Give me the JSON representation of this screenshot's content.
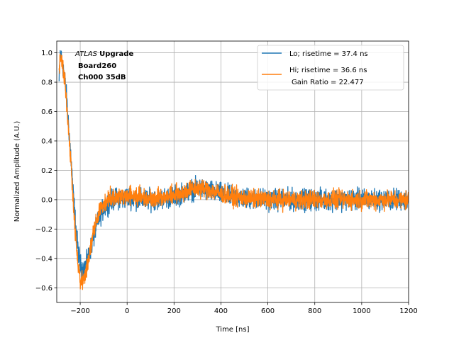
{
  "chart_data": {
    "type": "line",
    "xlabel": "Time [ns]",
    "ylabel": "Normalized Amplitude (A.U.)",
    "xlim": [
      -300,
      1200
    ],
    "ylim": [
      -0.7,
      1.08
    ],
    "x_ticks": [
      -200,
      0,
      200,
      400,
      600,
      800,
      1000,
      1200
    ],
    "y_ticks": [
      -0.6,
      -0.4,
      -0.2,
      0.0,
      0.2,
      0.4,
      0.6,
      0.8,
      1.0
    ],
    "grid": true,
    "legend_position": "top-right",
    "annotation": {
      "atlas": "ATLAS",
      "upgrade": "Upgrade",
      "board": "Board260",
      "channel": "Ch000 35dB"
    },
    "legend": {
      "lo": "Lo; risetime = 37.4 ns",
      "hi_line1": "Hi; risetime = 36.6 ns",
      "hi_line2": "Gain Ratio = 22.477"
    },
    "series": [
      {
        "name": "Lo",
        "color": "#1f77b4",
        "noise": 0.05,
        "x": [
          -290,
          -285,
          -280,
          -270,
          -260,
          -250,
          -240,
          -230,
          -220,
          -210,
          -200,
          -190,
          -180,
          -170,
          -160,
          -150,
          -140,
          -130,
          -120,
          -110,
          -100,
          -80,
          -60,
          -40,
          -20,
          0,
          50,
          100,
          150,
          200,
          250,
          300,
          350,
          400,
          450,
          500,
          600,
          700,
          800,
          900,
          1000,
          1100,
          1200
        ],
        "y": [
          0.8,
          1.0,
          0.96,
          0.88,
          0.73,
          0.52,
          0.3,
          0.05,
          -0.16,
          -0.33,
          -0.44,
          -0.48,
          -0.46,
          -0.42,
          -0.36,
          -0.3,
          -0.24,
          -0.18,
          -0.13,
          -0.09,
          -0.06,
          -0.02,
          0.0,
          0.01,
          0.0,
          0.02,
          0.0,
          0.0,
          0.01,
          0.02,
          0.05,
          0.08,
          0.06,
          0.04,
          0.02,
          0.01,
          0.0,
          0.0,
          0.0,
          0.0,
          0.0,
          0.0,
          0.0
        ]
      },
      {
        "name": "Hi",
        "color": "#ff7f0e",
        "noise": 0.045,
        "x": [
          -290,
          -285,
          -280,
          -270,
          -260,
          -250,
          -240,
          -230,
          -220,
          -210,
          -200,
          -190,
          -180,
          -170,
          -160,
          -150,
          -140,
          -130,
          -120,
          -110,
          -100,
          -80,
          -60,
          -40,
          -20,
          0,
          50,
          100,
          150,
          200,
          250,
          300,
          350,
          400,
          450,
          500,
          600,
          700,
          800,
          900,
          1000,
          1100,
          1200
        ],
        "y": [
          0.85,
          1.0,
          0.95,
          0.86,
          0.7,
          0.49,
          0.26,
          0.0,
          -0.24,
          -0.44,
          -0.55,
          -0.57,
          -0.52,
          -0.45,
          -0.36,
          -0.28,
          -0.2,
          -0.14,
          -0.09,
          -0.05,
          -0.03,
          0.0,
          0.02,
          0.03,
          0.02,
          0.03,
          0.02,
          0.01,
          0.02,
          0.03,
          0.06,
          0.08,
          0.07,
          0.04,
          0.02,
          0.01,
          0.0,
          0.0,
          0.0,
          0.0,
          0.0,
          0.0,
          0.0
        ]
      }
    ]
  }
}
